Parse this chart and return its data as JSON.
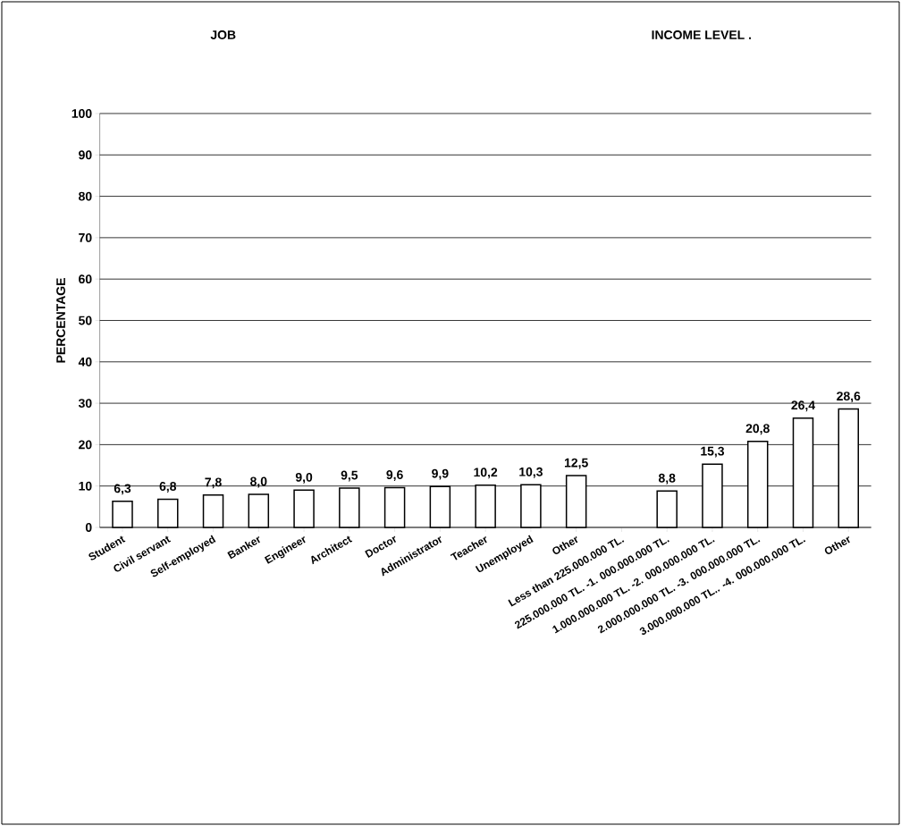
{
  "chart_data": {
    "type": "bar",
    "ylabel": "PERCENTAGE",
    "annotations": [
      "JOB",
      "INCOME LEVEL ."
    ],
    "categories": [
      "Student",
      "Civil servant",
      "Self-employed",
      "Banker",
      "Engineer",
      "Architect",
      "Doctor",
      "Administrator",
      "Teacher",
      "Unemployed",
      "Other",
      "Less than 225.000.000 TL.",
      "225.000.000 TL. -1. 000.000.000 TL.",
      "1.000.000.000 TL. -2. 000.000.000 TL.",
      "2.000.000.000 TL. -3. 000.000.000 TL.",
      "3.000.000.000 TL.. -4. 000.000.000 TL.",
      "Other"
    ],
    "values": [
      6.3,
      6.8,
      7.8,
      8.0,
      9.0,
      9.5,
      9.6,
      9.9,
      10.2,
      10.3,
      12.5,
      null,
      8.8,
      15.3,
      20.8,
      26.4,
      28.6
    ],
    "value_labels": [
      "6,3",
      "6,8",
      "7,8",
      "8,0",
      "9,0",
      "9,5",
      "9,6",
      "9,9",
      "10,2",
      "10,3",
      "12,5",
      null,
      "8,8",
      "15,3",
      "20,8",
      "26,4",
      "28,6"
    ],
    "color": "#ffffff",
    "ylim": [
      0,
      100
    ],
    "yticks": [
      0,
      10,
      20,
      30,
      40,
      50,
      60,
      70,
      80,
      90,
      100
    ],
    "grid": "y"
  }
}
